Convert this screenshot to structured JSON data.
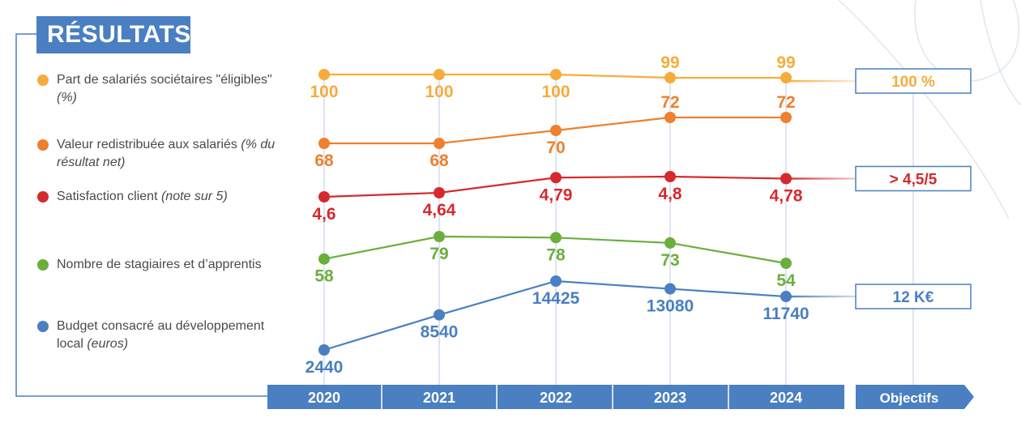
{
  "title": "RÉSULTATS",
  "chart_data": {
    "type": "line",
    "categories": [
      "2020",
      "2021",
      "2022",
      "2023",
      "2024"
    ],
    "objectives_label": "Objectifs",
    "series": [
      {
        "key": "eligibles",
        "name_text": "Part de salariés sociétaires \"éligibles\"",
        "name_unit": "(%)",
        "color": "#f6ac3c",
        "values": [
          100,
          100,
          100,
          99,
          99
        ],
        "labels": [
          "100",
          "100",
          "100",
          "99",
          "99"
        ],
        "label_pos": [
          "below",
          "below",
          "below",
          "above",
          "above"
        ],
        "objective": "100 %"
      },
      {
        "key": "valeur",
        "name_text": "Valeur redistribuée aux salariés",
        "name_unit": "(% du résultat net)",
        "color": "#f07f2e",
        "values": [
          68,
          68,
          70,
          72,
          72
        ],
        "labels": [
          "68",
          "68",
          "70",
          "72",
          "72"
        ],
        "label_pos": [
          "below",
          "below",
          "below",
          "above",
          "above"
        ],
        "objective": ""
      },
      {
        "key": "satisfaction",
        "name_text": "Satisfaction client",
        "name_unit": "(note sur 5)",
        "color": "#d42a2e",
        "values": [
          4.6,
          4.64,
          4.79,
          4.8,
          4.78
        ],
        "labels": [
          "4,6",
          "4,64",
          "4,79",
          "4,8",
          "4,78"
        ],
        "label_pos": [
          "below",
          "below",
          "below",
          "below",
          "below"
        ],
        "objective": "> 4,5/5"
      },
      {
        "key": "stagiaires",
        "name_text": "Nombre de stagiaires et d’apprentis",
        "name_unit": "",
        "color": "#6aaf3d",
        "values": [
          58,
          79,
          78,
          73,
          54
        ],
        "labels": [
          "58",
          "79",
          "78",
          "73",
          "54"
        ],
        "label_pos": [
          "below",
          "below",
          "below",
          "below",
          "below"
        ],
        "objective": ""
      },
      {
        "key": "budget",
        "name_text": "Budget consacré au développement local",
        "name_unit": "(euros)",
        "color": "#4a7fc1",
        "values": [
          2440,
          8540,
          14425,
          13080,
          11740
        ],
        "labels": [
          "2440",
          "8540",
          "14425",
          "13080",
          "11740"
        ],
        "label_pos": [
          "below",
          "below",
          "below",
          "below",
          "below"
        ],
        "objective": "12 K€"
      }
    ]
  }
}
